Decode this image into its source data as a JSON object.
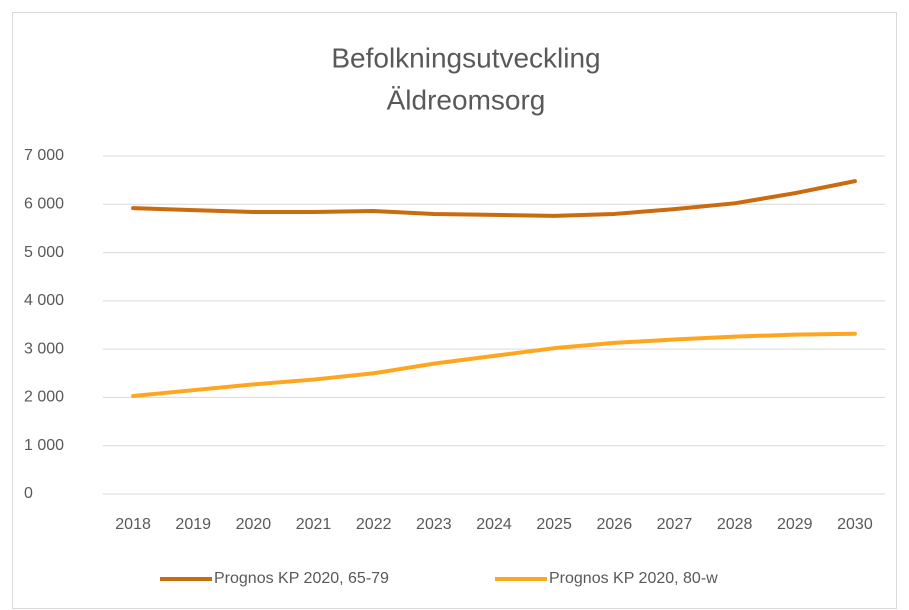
{
  "chart_data": {
    "type": "line",
    "title": [
      "Befolkningsutveckling",
      "Äldreomsorg"
    ],
    "categories": [
      "2018",
      "2019",
      "2020",
      "2021",
      "2022",
      "2023",
      "2024",
      "2025",
      "2026",
      "2027",
      "2028",
      "2029",
      "2030"
    ],
    "series": [
      {
        "name": "Prognos KP 2020, 65-79",
        "color": "#C96B0E",
        "values": [
          5920,
          5880,
          5840,
          5840,
          5860,
          5800,
          5780,
          5760,
          5800,
          5900,
          6020,
          6230,
          6480
        ]
      },
      {
        "name": "Prognos KP 2020, 80-w",
        "color": "#FFA620",
        "values": [
          2030,
          2150,
          2270,
          2370,
          2500,
          2700,
          2860,
          3020,
          3130,
          3200,
          3260,
          3300,
          3320
        ]
      }
    ],
    "ylim": [
      0,
      7000
    ],
    "yticks": [
      0,
      {
        "value": 1000,
        "label": "1 000"
      },
      {
        "value": 2000,
        "label": "2 000"
      },
      {
        "value": 3000,
        "label": "3 000"
      },
      {
        "value": 4000,
        "label": "4 000"
      },
      {
        "value": 5000,
        "label": "5 000"
      },
      {
        "value": 6000,
        "label": "6 000"
      },
      {
        "value": 7000,
        "label": "7 000"
      }
    ],
    "grid": true,
    "legend": "bottom"
  }
}
